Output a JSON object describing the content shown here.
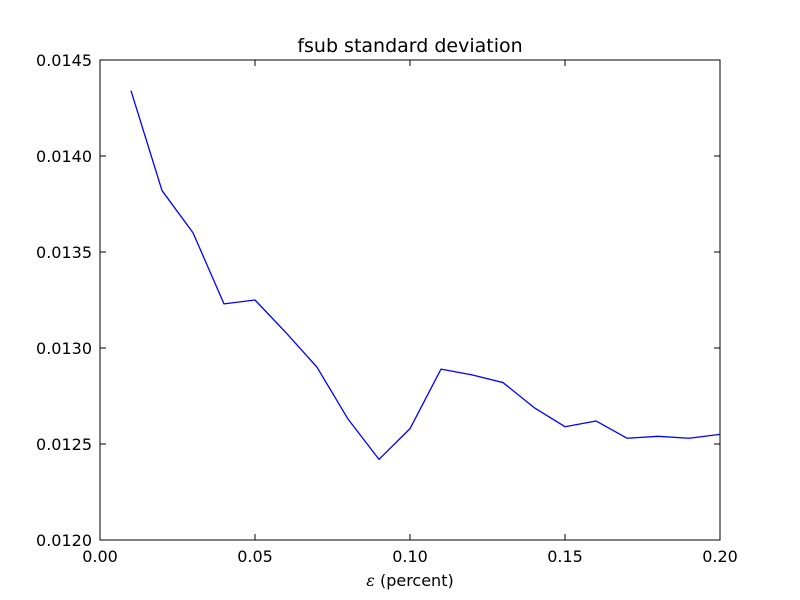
{
  "chart_data": {
    "type": "line",
    "title": "fsub standard deviation",
    "xlabel_symbol": "ε",
    "xlabel_text": " (percent)",
    "ylabel": "",
    "xlim": [
      0.0,
      0.2
    ],
    "ylim": [
      0.012,
      0.0145
    ],
    "grid": false,
    "x_ticks": [
      "0.00",
      "0.05",
      "0.10",
      "0.15",
      "0.20"
    ],
    "x_tick_values": [
      0.0,
      0.05,
      0.1,
      0.15,
      0.2
    ],
    "y_ticks": [
      "0.0120",
      "0.0125",
      "0.0130",
      "0.0135",
      "0.0140",
      "0.0145"
    ],
    "y_tick_values": [
      0.012,
      0.0125,
      0.013,
      0.0135,
      0.014,
      0.0145
    ],
    "series": [
      {
        "color": "#0000ff",
        "x": [
          0.01,
          0.02,
          0.03,
          0.04,
          0.05,
          0.06,
          0.07,
          0.08,
          0.09,
          0.1,
          0.11,
          0.12,
          0.13,
          0.14,
          0.15,
          0.16,
          0.17,
          0.18,
          0.19,
          0.2
        ],
        "y": [
          0.01434,
          0.01382,
          0.0136,
          0.01323,
          0.01325,
          0.01308,
          0.0129,
          0.01263,
          0.01242,
          0.01258,
          0.01289,
          0.01286,
          0.01282,
          0.01269,
          0.01259,
          0.01262,
          0.01253,
          0.01254,
          0.01253,
          0.01255
        ]
      }
    ]
  }
}
